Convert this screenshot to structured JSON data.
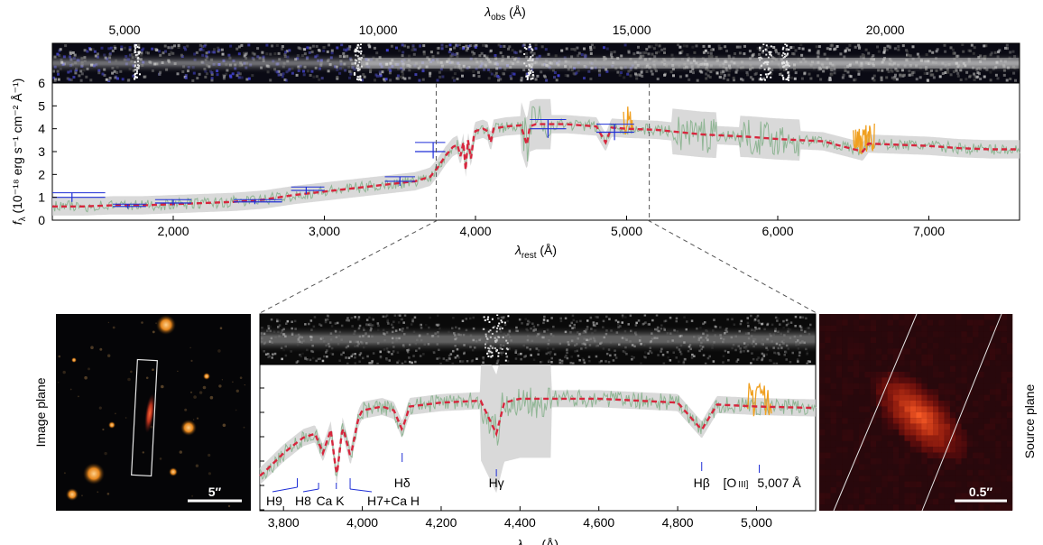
{
  "chart_data": [
    {
      "type": "line",
      "panel": "full-spectrum",
      "top_axis_label": "λ",
      "top_axis_sub": "obs",
      "top_axis_unit": " (Å)",
      "top_ticks": [
        "5,000",
        "10,000",
        "15,000",
        "20,000"
      ],
      "top_tick_values": [
        5000,
        10000,
        15000,
        20000
      ],
      "xlabel": "λ",
      "xlabel_sub": "rest",
      "xlabel_unit": " (Å)",
      "ylabel": "f",
      "ylabel_sub": "λ",
      "ylabel_unit": " (10⁻¹⁸ erg s⁻¹ cm⁻² Å⁻¹)",
      "xlim": [
        1200,
        7600
      ],
      "ylim": [
        0,
        6
      ],
      "x_ticks": [
        "2,000",
        "3,000",
        "4,000",
        "5,000",
        "6,000",
        "7,000"
      ],
      "x_tick_values": [
        2000,
        3000,
        4000,
        5000,
        6000,
        7000
      ],
      "y_ticks": [
        "0",
        "1",
        "2",
        "3",
        "4",
        "5",
        "6"
      ],
      "y_tick_values": [
        0,
        1,
        2,
        3,
        4,
        5,
        6
      ],
      "zoom_range": [
        3740,
        5150
      ],
      "series": [
        {
          "role": "model",
          "color": "#d7263d",
          "x": [
            1200,
            1400,
            1600,
            1800,
            2000,
            2200,
            2400,
            2600,
            2800,
            3000,
            3200,
            3400,
            3600,
            3700,
            3750,
            3800,
            3850,
            3880,
            3900,
            3920,
            3935,
            3950,
            3970,
            3990,
            4000,
            4050,
            4080,
            4101,
            4120,
            4200,
            4300,
            4340,
            4360,
            4400,
            4500,
            4600,
            4700,
            4800,
            4861,
            4900,
            5000,
            5200,
            5500,
            5800,
            6000,
            6300,
            6563,
            6600,
            6800,
            7000,
            7200,
            7400,
            7600
          ],
          "y": [
            0.6,
            0.6,
            0.65,
            0.65,
            0.7,
            0.75,
            0.8,
            0.9,
            1.1,
            1.25,
            1.4,
            1.55,
            1.7,
            1.9,
            2.3,
            2.8,
            3.2,
            3.3,
            2.8,
            3.4,
            2.2,
            3.5,
            2.7,
            3.7,
            3.9,
            4.0,
            3.9,
            3.4,
            4.0,
            4.1,
            4.15,
            3.3,
            4.1,
            4.2,
            4.2,
            4.2,
            4.15,
            4.1,
            3.4,
            4.05,
            4.0,
            3.95,
            3.75,
            3.65,
            3.55,
            3.45,
            3.0,
            3.35,
            3.3,
            3.25,
            3.15,
            3.1,
            3.1
          ]
        },
        {
          "role": "photometry",
          "color": "#1f2fd6",
          "points": [
            {
              "x": 1330,
              "y": 1.0,
              "xlo": 1200,
              "xhi": 1550,
              "ylo": 0.8,
              "yhi": 1.2
            },
            {
              "x": 1700,
              "y": 0.6,
              "xlo": 1600,
              "xhi": 1820,
              "ylo": 0.5,
              "yhi": 0.7
            },
            {
              "x": 2000,
              "y": 0.75,
              "xlo": 1880,
              "xhi": 2120,
              "ylo": 0.65,
              "yhi": 0.9
            },
            {
              "x": 2540,
              "y": 0.8,
              "xlo": 2400,
              "xhi": 2720,
              "ylo": 0.7,
              "yhi": 0.9
            },
            {
              "x": 2880,
              "y": 1.3,
              "xlo": 2780,
              "xhi": 3000,
              "ylo": 1.15,
              "yhi": 1.45
            },
            {
              "x": 3500,
              "y": 1.7,
              "xlo": 3400,
              "xhi": 3600,
              "ylo": 1.5,
              "yhi": 1.9
            },
            {
              "x": 3720,
              "y": 3.0,
              "xlo": 3600,
              "xhi": 3800,
              "ylo": 2.7,
              "yhi": 3.4
            },
            {
              "x": 4480,
              "y": 4.0,
              "xlo": 4360,
              "xhi": 4600,
              "ylo": 3.6,
              "yhi": 4.4
            },
            {
              "x": 4920,
              "y": 3.85,
              "xlo": 4800,
              "xhi": 5050,
              "ylo": 3.5,
              "yhi": 4.2
            }
          ]
        }
      ]
    },
    {
      "type": "line",
      "panel": "zoom-spectrum",
      "xlabel": "λ",
      "xlabel_sub": "rest",
      "xlabel_unit": " (Å)",
      "xlim": [
        3740,
        5150
      ],
      "x_ticks": [
        "3,800",
        "4,000",
        "4,200",
        "4,400",
        "4,600",
        "4,800",
        "5,000"
      ],
      "x_tick_values": [
        3800,
        4000,
        4200,
        4400,
        4600,
        4800,
        5000
      ],
      "lines": [
        {
          "label": "H9",
          "x": 3835
        },
        {
          "label": "H8",
          "x": 3889
        },
        {
          "label": "Ca K",
          "x": 3934
        },
        {
          "label": "H7+Ca H",
          "x": 3969
        },
        {
          "label": "Hδ",
          "x": 4101
        },
        {
          "label": "Hγ",
          "x": 4340
        },
        {
          "label": "Hβ",
          "x": 4861
        },
        {
          "label": "[O",
          "x": 5007
        },
        {
          "label": "III]",
          "x": 5007
        },
        {
          "label": "5,007 Å",
          "x": 5007
        }
      ]
    }
  ],
  "image_plane": {
    "side_label": "Image plane",
    "scalebar": "5″"
  },
  "source_plane": {
    "side_label": "Source plane",
    "scalebar": "0.5″"
  },
  "colors": {
    "model": "#d7263d",
    "observed": "#8fb594",
    "noise": "#cfcfcf",
    "emission": "#f0a020",
    "photometry": "#1f2fd6",
    "markers": "#1f2fd6"
  }
}
